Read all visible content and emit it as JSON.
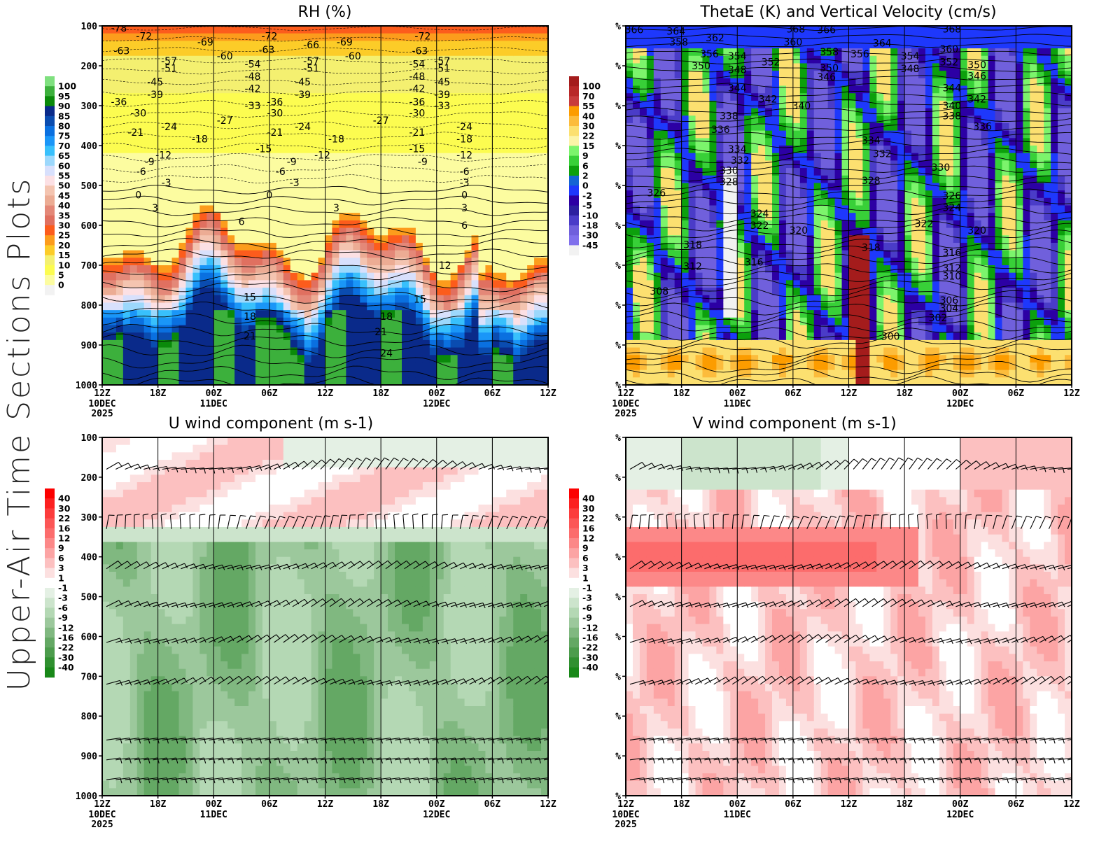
{
  "figure": {
    "side_title": "Upper-Air Time Sections Plots"
  },
  "chart_data": [
    {
      "id": "rh",
      "type": "heatmap",
      "title": "RH (%)",
      "xlabel": "",
      "ylabel": "",
      "x_ticks": [
        "12Z",
        "18Z",
        "00Z",
        "06Z",
        "12Z",
        "18Z",
        "00Z",
        "06Z",
        "12Z"
      ],
      "x_date_labels": [
        {
          "tick": 0,
          "lines": [
            "10DEC",
            "2025"
          ]
        },
        {
          "tick": 2,
          "lines": [
            "11DEC"
          ]
        },
        {
          "tick": 6,
          "lines": [
            "12DEC"
          ]
        }
      ],
      "y_ticks": [
        "100",
        "200",
        "300",
        "400",
        "500",
        "600",
        "700",
        "800",
        "900",
        "1000"
      ],
      "ylim": [
        100,
        1000
      ],
      "colorbar": {
        "labels": [
          "100",
          "95",
          "90",
          "85",
          "80",
          "75",
          "70",
          "65",
          "60",
          "55",
          "50",
          "45",
          "40",
          "35",
          "30",
          "25",
          "20",
          "15",
          "10",
          "5",
          "0"
        ],
        "colors": [
          "#7fe07f",
          "#3cb03c",
          "#0a8a0a",
          "#0a2a8a",
          "#0a4cb0",
          "#0a70e0",
          "#1a96f8",
          "#38c0fc",
          "#9cd8fc",
          "#d8e0fc",
          "#fce0e4",
          "#f4c4b0",
          "#ecac94",
          "#e48878",
          "#e07060",
          "#fc5c1c",
          "#fc9c1c",
          "#fccc28",
          "#f4f070",
          "#fcfc50",
          "#fcfca0",
          "#f2f2f2"
        ]
      },
      "overlay": "Temperature contours",
      "contour_labels": [
        {
          "t": 0.3,
          "p": 105,
          "v": "-78"
        },
        {
          "t": 0.75,
          "p": 125,
          "v": "-72"
        },
        {
          "t": 1.85,
          "p": 140,
          "v": "-69"
        },
        {
          "t": 3.0,
          "p": 125,
          "v": "-72"
        },
        {
          "t": 3.75,
          "p": 147,
          "v": "-66"
        },
        {
          "t": 4.35,
          "p": 140,
          "v": "-69"
        },
        {
          "t": 5.75,
          "p": 125,
          "v": "-72"
        },
        {
          "t": 0.35,
          "p": 162,
          "v": "-63"
        },
        {
          "t": 2.2,
          "p": 175,
          "v": "-60"
        },
        {
          "t": 2.95,
          "p": 160,
          "v": "-63"
        },
        {
          "t": 4.5,
          "p": 175,
          "v": "-60"
        },
        {
          "t": 5.7,
          "p": 162,
          "v": "-63"
        },
        {
          "t": 1.2,
          "p": 188,
          "v": "-57"
        },
        {
          "t": 3.75,
          "p": 188,
          "v": "-57"
        },
        {
          "t": 6.1,
          "p": 188,
          "v": "-57"
        },
        {
          "t": 1.2,
          "p": 206,
          "v": "-51"
        },
        {
          "t": 3.75,
          "p": 206,
          "v": "-51"
        },
        {
          "t": 6.1,
          "p": 206,
          "v": "-51"
        },
        {
          "t": 2.7,
          "p": 196,
          "v": "-54"
        },
        {
          "t": 5.65,
          "p": 196,
          "v": "-54"
        },
        {
          "t": 2.7,
          "p": 226,
          "v": "-48"
        },
        {
          "t": 5.65,
          "p": 226,
          "v": "-48"
        },
        {
          "t": 0.95,
          "p": 240,
          "v": "-45"
        },
        {
          "t": 3.6,
          "p": 240,
          "v": "-45"
        },
        {
          "t": 6.1,
          "p": 240,
          "v": "-45"
        },
        {
          "t": 2.7,
          "p": 257,
          "v": "-42"
        },
        {
          "t": 5.65,
          "p": 257,
          "v": "-42"
        },
        {
          "t": 0.95,
          "p": 272,
          "v": "-39"
        },
        {
          "t": 3.6,
          "p": 272,
          "v": "-39"
        },
        {
          "t": 6.1,
          "p": 272,
          "v": "-39"
        },
        {
          "t": 0.3,
          "p": 290,
          "v": "-36"
        },
        {
          "t": 3.1,
          "p": 290,
          "v": "-36"
        },
        {
          "t": 5.65,
          "p": 290,
          "v": "-36"
        },
        {
          "t": 2.7,
          "p": 300,
          "v": "-33"
        },
        {
          "t": 6.1,
          "p": 300,
          "v": "-33"
        },
        {
          "t": 0.65,
          "p": 318,
          "v": "-30"
        },
        {
          "t": 3.1,
          "p": 318,
          "v": "-30"
        },
        {
          "t": 5.65,
          "p": 318,
          "v": "-30"
        },
        {
          "t": 2.2,
          "p": 337,
          "v": "-27"
        },
        {
          "t": 5.0,
          "p": 337,
          "v": "-27"
        },
        {
          "t": 1.2,
          "p": 353,
          "v": "-24"
        },
        {
          "t": 3.6,
          "p": 353,
          "v": "-24"
        },
        {
          "t": 6.5,
          "p": 353,
          "v": "-24"
        },
        {
          "t": 0.6,
          "p": 367,
          "v": "-21"
        },
        {
          "t": 3.1,
          "p": 367,
          "v": "-21"
        },
        {
          "t": 5.65,
          "p": 367,
          "v": "-21"
        },
        {
          "t": 1.75,
          "p": 383,
          "v": "-18"
        },
        {
          "t": 4.2,
          "p": 383,
          "v": "-18"
        },
        {
          "t": 6.5,
          "p": 383,
          "v": "-18"
        },
        {
          "t": 2.9,
          "p": 408,
          "v": "-15"
        },
        {
          "t": 5.65,
          "p": 408,
          "v": "-15"
        },
        {
          "t": 1.1,
          "p": 424,
          "v": "-12"
        },
        {
          "t": 3.95,
          "p": 424,
          "v": "-12"
        },
        {
          "t": 6.5,
          "p": 424,
          "v": "-12"
        },
        {
          "t": 0.85,
          "p": 440,
          "v": "-9"
        },
        {
          "t": 3.4,
          "p": 440,
          "v": "-9"
        },
        {
          "t": 5.75,
          "p": 440,
          "v": "-9"
        },
        {
          "t": 0.7,
          "p": 465,
          "v": "-6"
        },
        {
          "t": 3.2,
          "p": 465,
          "v": "-6"
        },
        {
          "t": 6.5,
          "p": 465,
          "v": "-6"
        },
        {
          "t": 1.15,
          "p": 493,
          "v": "-3"
        },
        {
          "t": 3.45,
          "p": 493,
          "v": "-3"
        },
        {
          "t": 6.5,
          "p": 493,
          "v": "-3"
        },
        {
          "t": 0.65,
          "p": 524,
          "v": "0"
        },
        {
          "t": 3.0,
          "p": 524,
          "v": "0"
        },
        {
          "t": 6.5,
          "p": 524,
          "v": "0"
        },
        {
          "t": 0.95,
          "p": 556,
          "v": "3"
        },
        {
          "t": 4.2,
          "p": 556,
          "v": "3"
        },
        {
          "t": 6.5,
          "p": 556,
          "v": "3"
        },
        {
          "t": 2.5,
          "p": 590,
          "v": "6"
        },
        {
          "t": 6.5,
          "p": 600,
          "v": "6"
        },
        {
          "t": 6.15,
          "p": 700,
          "v": "12"
        },
        {
          "t": 2.65,
          "p": 780,
          "v": "15"
        },
        {
          "t": 5.7,
          "p": 785,
          "v": "15"
        },
        {
          "t": 2.65,
          "p": 828,
          "v": "18"
        },
        {
          "t": 5.1,
          "p": 828,
          "v": "18"
        },
        {
          "t": 2.65,
          "p": 877,
          "v": "21"
        },
        {
          "t": 5.0,
          "p": 867,
          "v": "21"
        },
        {
          "t": 5.1,
          "p": 920,
          "v": "24"
        }
      ]
    },
    {
      "id": "thetae",
      "type": "heatmap",
      "title": "ThetaE (K) and Vertical Velocity (cm/s)",
      "xlabel": "",
      "ylabel": "",
      "x_ticks": [
        "12Z",
        "18Z",
        "00Z",
        "06Z",
        "12Z",
        "18Z",
        "00Z",
        "06Z",
        "12Z"
      ],
      "x_date_labels": [
        {
          "tick": 0,
          "lines": [
            "10DEC",
            "2025"
          ]
        },
        {
          "tick": 2,
          "lines": [
            "11DEC"
          ]
        },
        {
          "tick": 6,
          "lines": [
            "12DEC"
          ]
        }
      ],
      "y_ticks": [
        "%",
        "%",
        "%",
        "%",
        "%",
        "%",
        "%",
        "%",
        "%",
        "%"
      ],
      "ylim": [
        100,
        1000
      ],
      "colorbar": {
        "labels": [
          "100",
          "70",
          "55",
          "40",
          "30",
          "22",
          "15",
          "9",
          "6",
          "2",
          "0",
          "-2",
          "-5",
          "-10",
          "-18",
          "-30",
          "-45"
        ],
        "colors": [
          "#a41c1c",
          "#b82828",
          "#c83c3c",
          "#fc9c00",
          "#fcbc3c",
          "#fce070",
          "#fcf4a8",
          "#7cf46c",
          "#38d038",
          "#0ca00c",
          "#1464d4",
          "#1e38fc",
          "#2c00a4",
          "#2c20a0",
          "#4a3cc8",
          "#7060dc",
          "#8070ec",
          "#f2f2f2"
        ]
      },
      "overlay": "ThetaE contours (K)",
      "contour_labels": [
        {
          "t": 0.15,
          "p": 110,
          "v": "366"
        },
        {
          "t": 0.9,
          "p": 113,
          "v": "364"
        },
        {
          "t": 1.6,
          "p": 130,
          "v": "362"
        },
        {
          "t": 3.05,
          "p": 108,
          "v": "368"
        },
        {
          "t": 3.6,
          "p": 110,
          "v": "366"
        },
        {
          "t": 4.6,
          "p": 143,
          "v": "364"
        },
        {
          "t": 5.85,
          "p": 108,
          "v": "368"
        },
        {
          "t": 0.95,
          "p": 140,
          "v": "358"
        },
        {
          "t": 1.5,
          "p": 170,
          "v": "356"
        },
        {
          "t": 3.0,
          "p": 140,
          "v": "360"
        },
        {
          "t": 3.65,
          "p": 165,
          "v": "358"
        },
        {
          "t": 4.2,
          "p": 170,
          "v": "356"
        },
        {
          "t": 5.8,
          "p": 158,
          "v": "360"
        },
        {
          "t": 1.35,
          "p": 200,
          "v": "350"
        },
        {
          "t": 2.0,
          "p": 175,
          "v": "354"
        },
        {
          "t": 2.0,
          "p": 210,
          "v": "348"
        },
        {
          "t": 2.6,
          "p": 190,
          "v": "352"
        },
        {
          "t": 3.65,
          "p": 205,
          "v": "350"
        },
        {
          "t": 3.6,
          "p": 228,
          "v": "346"
        },
        {
          "t": 5.1,
          "p": 175,
          "v": "354"
        },
        {
          "t": 5.1,
          "p": 207,
          "v": "348"
        },
        {
          "t": 5.8,
          "p": 190,
          "v": "352"
        },
        {
          "t": 6.3,
          "p": 197,
          "v": "350"
        },
        {
          "t": 6.3,
          "p": 225,
          "v": "346"
        },
        {
          "t": 2.0,
          "p": 255,
          "v": "344"
        },
        {
          "t": 2.55,
          "p": 283,
          "v": "342"
        },
        {
          "t": 3.15,
          "p": 300,
          "v": "340"
        },
        {
          "t": 5.85,
          "p": 255,
          "v": "344"
        },
        {
          "t": 6.3,
          "p": 283,
          "v": "342"
        },
        {
          "t": 5.85,
          "p": 300,
          "v": "340"
        },
        {
          "t": 1.85,
          "p": 325,
          "v": "338"
        },
        {
          "t": 5.85,
          "p": 325,
          "v": "338"
        },
        {
          "t": 1.7,
          "p": 360,
          "v": "336"
        },
        {
          "t": 6.4,
          "p": 352,
          "v": "336"
        },
        {
          "t": 4.4,
          "p": 387,
          "v": "334"
        },
        {
          "t": 2.0,
          "p": 409,
          "v": "334"
        },
        {
          "t": 2.05,
          "p": 437,
          "v": "332"
        },
        {
          "t": 4.6,
          "p": 420,
          "v": "332"
        },
        {
          "t": 1.85,
          "p": 462,
          "v": "330"
        },
        {
          "t": 5.65,
          "p": 454,
          "v": "330"
        },
        {
          "t": 1.85,
          "p": 490,
          "v": "328"
        },
        {
          "t": 4.4,
          "p": 488,
          "v": "328"
        },
        {
          "t": 0.55,
          "p": 518,
          "v": "326"
        },
        {
          "t": 5.85,
          "p": 525,
          "v": "326"
        },
        {
          "t": 2.4,
          "p": 570,
          "v": "324"
        },
        {
          "t": 5.85,
          "p": 555,
          "v": "324"
        },
        {
          "t": 2.4,
          "p": 600,
          "v": "322"
        },
        {
          "t": 5.35,
          "p": 596,
          "v": "322"
        },
        {
          "t": 3.1,
          "p": 612,
          "v": "320"
        },
        {
          "t": 6.3,
          "p": 612,
          "v": "320"
        },
        {
          "t": 1.2,
          "p": 648,
          "v": "318"
        },
        {
          "t": 4.4,
          "p": 655,
          "v": "318"
        },
        {
          "t": 5.85,
          "p": 668,
          "v": "316"
        },
        {
          "t": 2.3,
          "p": 692,
          "v": "316"
        },
        {
          "t": 1.2,
          "p": 703,
          "v": "312"
        },
        {
          "t": 5.85,
          "p": 707,
          "v": "312"
        },
        {
          "t": 5.85,
          "p": 727,
          "v": "310"
        },
        {
          "t": 0.6,
          "p": 765,
          "v": "308"
        },
        {
          "t": 5.8,
          "p": 788,
          "v": "306"
        },
        {
          "t": 5.8,
          "p": 808,
          "v": "304"
        },
        {
          "t": 5.6,
          "p": 832,
          "v": "302"
        },
        {
          "t": 4.75,
          "p": 878,
          "v": "300"
        }
      ]
    },
    {
      "id": "uwind",
      "type": "heatmap",
      "title": "U wind component (m s-1)",
      "xlabel": "",
      "ylabel": "",
      "x_ticks": [
        "12Z",
        "18Z",
        "00Z",
        "06Z",
        "12Z",
        "18Z",
        "00Z",
        "06Z",
        "12Z"
      ],
      "x_date_labels": [
        {
          "tick": 0,
          "lines": [
            "10DEC",
            "2025"
          ]
        },
        {
          "tick": 2,
          "lines": [
            "11DEC"
          ]
        },
        {
          "tick": 6,
          "lines": [
            "12DEC"
          ]
        }
      ],
      "y_ticks": [
        "100",
        "200",
        "300",
        "400",
        "500",
        "600",
        "700",
        "800",
        "900",
        "1000"
      ],
      "ylim": [
        100,
        1000
      ],
      "colorbar": {
        "labels": [
          "40",
          "30",
          "22",
          "16",
          "12",
          "9",
          "6",
          "3",
          "1",
          "-1",
          "-3",
          "-6",
          "-9",
          "-12",
          "-16",
          "-22",
          "-30",
          "-40"
        ],
        "colors": [
          "#fc0000",
          "#fc2020",
          "#fc3c3c",
          "#fc5656",
          "#fc6c6c",
          "#fc8888",
          "#fca4a4",
          "#fcc0c0",
          "#fce0e0",
          "#ffffff",
          "#e4f0e4",
          "#cce4cc",
          "#b4d8b4",
          "#9cc89c",
          "#80b880",
          "#64a864",
          "#4c9c4c",
          "#309030",
          "#188818"
        ]
      },
      "barb_levels": [
        180,
        330,
        430,
        525,
        615,
        720,
        860,
        910,
        960
      ]
    },
    {
      "id": "vwind",
      "type": "heatmap",
      "title": "V wind component (m s-1)",
      "xlabel": "",
      "ylabel": "",
      "x_ticks": [
        "12Z",
        "18Z",
        "00Z",
        "06Z",
        "12Z",
        "18Z",
        "00Z",
        "06Z",
        "12Z"
      ],
      "x_date_labels": [
        {
          "tick": 0,
          "lines": [
            "10DEC",
            "2025"
          ]
        },
        {
          "tick": 2,
          "lines": [
            "11DEC"
          ]
        },
        {
          "tick": 6,
          "lines": [
            "12DEC"
          ]
        }
      ],
      "y_ticks": [
        "%",
        "%",
        "%",
        "%",
        "%",
        "%",
        "%",
        "%",
        "%",
        "%"
      ],
      "ylim": [
        100,
        1000
      ],
      "colorbar": {
        "labels": [
          "40",
          "30",
          "22",
          "16",
          "12",
          "9",
          "6",
          "3",
          "1",
          "-1",
          "-3",
          "-6",
          "-9",
          "-12",
          "-16",
          "-22",
          "-30",
          "-40"
        ],
        "colors": [
          "#fc0000",
          "#fc2020",
          "#fc3c3c",
          "#fc5656",
          "#fc6c6c",
          "#fc8888",
          "#fca4a4",
          "#fcc0c0",
          "#fce0e0",
          "#ffffff",
          "#e4f0e4",
          "#cce4cc",
          "#b4d8b4",
          "#9cc89c",
          "#80b880",
          "#64a864",
          "#4c9c4c",
          "#309030",
          "#188818"
        ]
      },
      "barb_levels": [
        180,
        330,
        430,
        525,
        615,
        720,
        860,
        910,
        960
      ]
    }
  ]
}
